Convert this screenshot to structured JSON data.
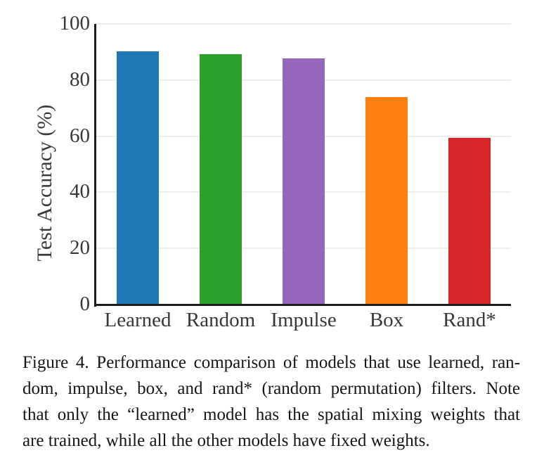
{
  "chart_data": {
    "type": "bar",
    "categories": [
      "Learned",
      "Random",
      "Impulse",
      "Box",
      "Rand*"
    ],
    "values": [
      90.2,
      89.3,
      87.7,
      74.0,
      59.4
    ],
    "title": "",
    "xlabel": "",
    "ylabel": "Test Accuracy (%)",
    "ylim": [
      0,
      100
    ],
    "yticks": [
      0,
      20,
      40,
      60,
      80,
      100
    ],
    "grid": true,
    "legend": null,
    "bar_colors": [
      "#1f77b4",
      "#2ca02c",
      "#9467bd",
      "#ff7f0e",
      "#d62728"
    ],
    "axis_color": "#1c1c1c",
    "gridline_color": "#ededed"
  },
  "caption": {
    "label": "Figure 4.",
    "lines": [
      "Figure 4. Performance comparison of models that use learned, ran-",
      "dom, impulse, box, and rand* (random permutation) filters. Note",
      "that only the “learned” model has the spatial mixing weights that",
      "are trained, while all the other models have fixed weights."
    ],
    "full_text": "Figure 4. Performance comparison of models that use learned, random, impulse, box, and rand* (random permutation) filters. Note that only the “learned” model has the spatial mixing weights that are trained, while all the other models have fixed weights."
  }
}
